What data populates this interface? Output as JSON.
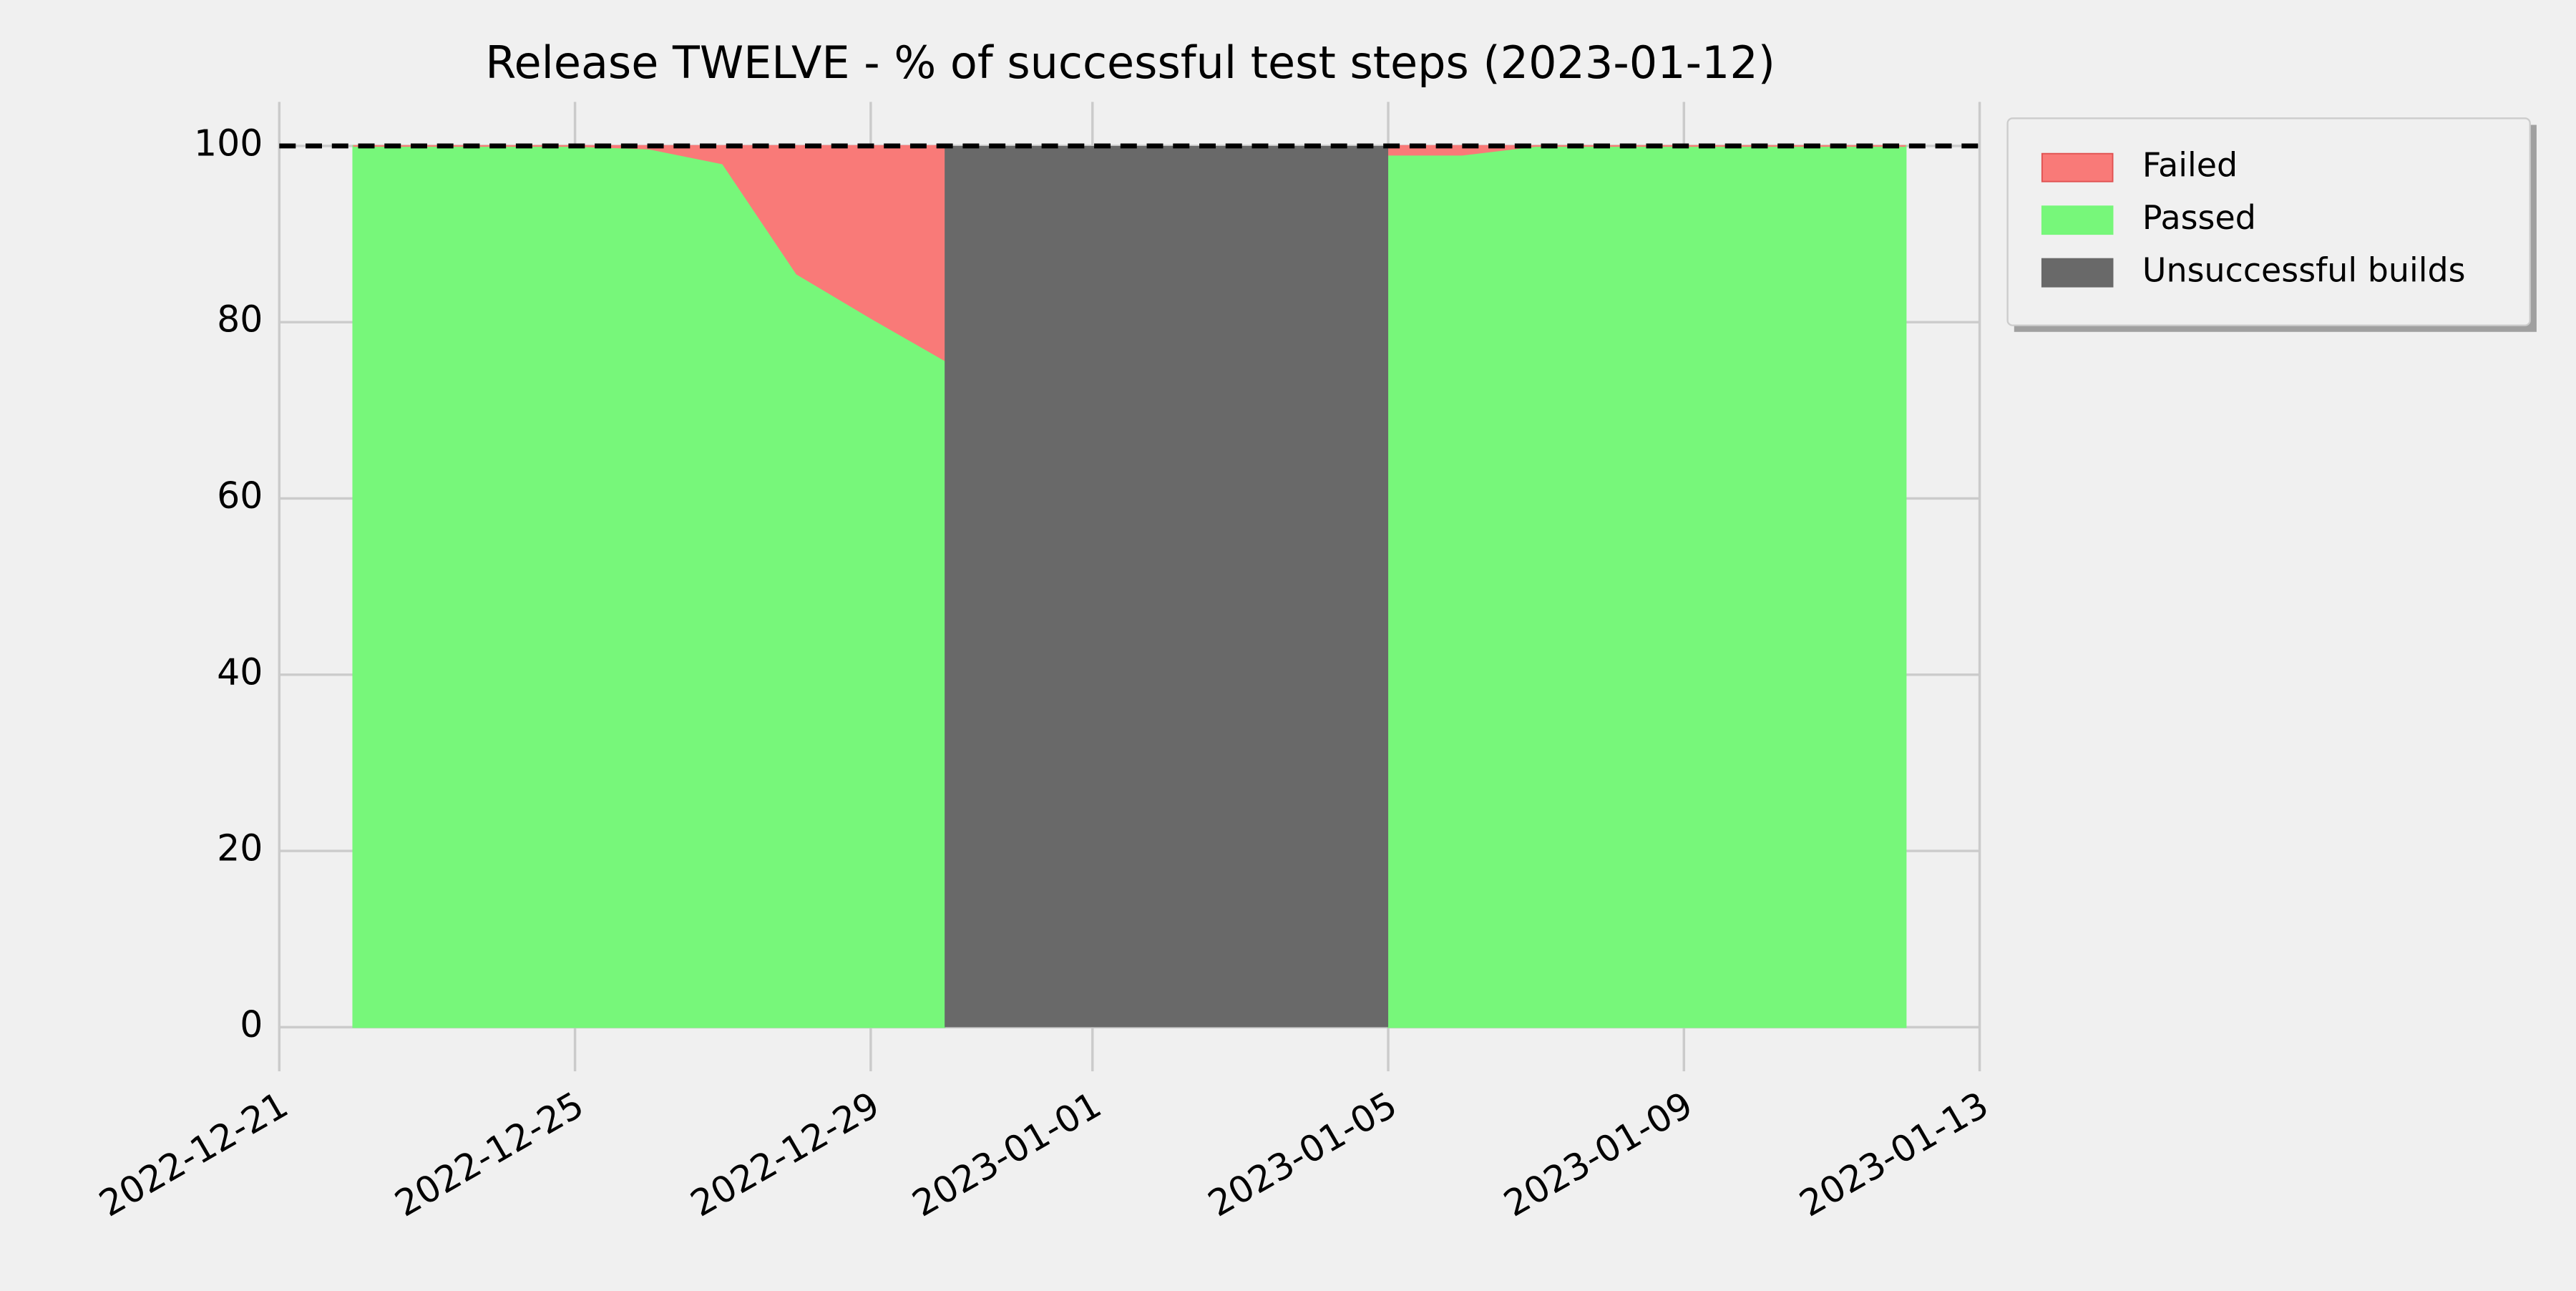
{
  "chart_data": {
    "type": "stacked_area",
    "title": "Release TWELVE - % of successful test steps (2023-01-12)",
    "x": [
      "2022-12-22",
      "2022-12-23",
      "2022-12-24",
      "2022-12-25",
      "2022-12-26",
      "2022-12-27",
      "2022-12-28",
      "2022-12-29",
      "2022-12-30",
      "2022-12-31",
      "2023-01-01",
      "2023-01-02",
      "2023-01-03",
      "2023-01-04",
      "2023-01-05",
      "2023-01-06",
      "2023-01-07",
      "2023-01-08",
      "2023-01-09",
      "2023-01-10",
      "2023-01-11",
      "2023-01-12"
    ],
    "series": [
      {
        "name": "Passed",
        "color": "#77f77a",
        "values": [
          100,
          100,
          100,
          100,
          99.7,
          98,
          85.5,
          80.5,
          75.7,
          null,
          null,
          null,
          null,
          null,
          99,
          99,
          100,
          100,
          100,
          100,
          100,
          100
        ]
      },
      {
        "name": "Failed",
        "color": "#f97a78",
        "values": [
          0,
          0,
          0,
          0,
          0.3,
          2,
          14.5,
          19.5,
          24.3,
          null,
          null,
          null,
          null,
          null,
          1,
          1,
          0,
          0,
          0,
          0,
          0,
          0
        ]
      },
      {
        "name": "Unsuccessful builds",
        "color": "#696969",
        "spans": [
          [
            "2022-12-30",
            "2023-01-05"
          ]
        ]
      }
    ],
    "legend_order": [
      1,
      0,
      2
    ],
    "target_line": 100,
    "xlim": [
      "2022-12-21",
      "2023-01-13"
    ],
    "xticks": [
      "2022-12-21",
      "2022-12-25",
      "2022-12-29",
      "2023-01-01",
      "2023-01-05",
      "2023-01-09",
      "2023-01-13"
    ],
    "ylim": [
      -5,
      105
    ],
    "yticks": [
      0,
      20,
      40,
      60,
      80,
      100
    ],
    "grid": true,
    "legend": "outside-upper-right"
  }
}
